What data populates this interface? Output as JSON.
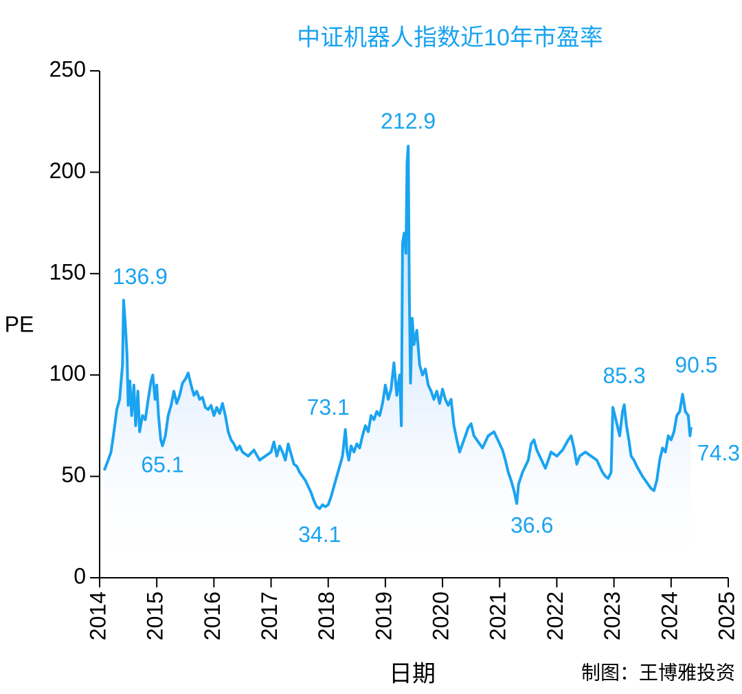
{
  "chart_data": {
    "type": "line",
    "title": "中证机器人指数近10年市盈率",
    "x_label": "日期",
    "y_label": "PE",
    "source": "制图：王博雅投资",
    "color": "#1aa3f0",
    "xlim": [
      2014,
      2025
    ],
    "xticks": [
      2014,
      2015,
      2016,
      2017,
      2018,
      2019,
      2020,
      2021,
      2022,
      2023,
      2024,
      2025
    ],
    "ylim": [
      0,
      250
    ],
    "yticks": [
      0,
      50,
      100,
      150,
      200,
      250
    ],
    "x": [
      2014.08,
      2014.15,
      2014.2,
      2014.25,
      2014.3,
      2014.35,
      2014.4,
      2014.42,
      2014.45,
      2014.48,
      2014.5,
      2014.53,
      2014.56,
      2014.6,
      2014.63,
      2014.67,
      2014.7,
      2014.75,
      2014.8,
      2014.85,
      2014.9,
      2014.93,
      2014.97,
      2015.0,
      2015.03,
      2015.07,
      2015.1,
      2015.15,
      2015.2,
      2015.25,
      2015.3,
      2015.35,
      2015.4,
      2015.45,
      2015.5,
      2015.55,
      2015.6,
      2015.65,
      2015.7,
      2015.75,
      2015.8,
      2015.85,
      2015.9,
      2015.95,
      2016.0,
      2016.05,
      2016.1,
      2016.15,
      2016.2,
      2016.25,
      2016.3,
      2016.35,
      2016.4,
      2016.45,
      2016.5,
      2016.6,
      2016.7,
      2016.8,
      2016.9,
      2017.0,
      2017.05,
      2017.1,
      2017.15,
      2017.2,
      2017.25,
      2017.3,
      2017.35,
      2017.4,
      2017.45,
      2017.5,
      2017.6,
      2017.7,
      2017.75,
      2017.8,
      2017.85,
      2017.9,
      2017.95,
      2018.0,
      2018.05,
      2018.1,
      2018.15,
      2018.2,
      2018.25,
      2018.3,
      2018.33,
      2018.36,
      2018.4,
      2018.45,
      2018.5,
      2018.55,
      2018.6,
      2018.65,
      2018.7,
      2018.75,
      2018.8,
      2018.85,
      2018.9,
      2018.95,
      2019.0,
      2019.05,
      2019.1,
      2019.15,
      2019.2,
      2019.25,
      2019.28,
      2019.3,
      2019.33,
      2019.36,
      2019.38,
      2019.4,
      2019.42,
      2019.44,
      2019.47,
      2019.5,
      2019.55,
      2019.6,
      2019.65,
      2019.7,
      2019.75,
      2019.8,
      2019.85,
      2019.9,
      2019.95,
      2020.0,
      2020.05,
      2020.1,
      2020.15,
      2020.2,
      2020.25,
      2020.3,
      2020.35,
      2020.4,
      2020.45,
      2020.5,
      2020.55,
      2020.6,
      2020.7,
      2020.8,
      2020.9,
      2021.0,
      2021.05,
      2021.1,
      2021.15,
      2021.2,
      2021.25,
      2021.3,
      2021.33,
      2021.4,
      2021.5,
      2021.55,
      2021.6,
      2021.65,
      2021.7,
      2021.8,
      2021.85,
      2021.9,
      2022.0,
      2022.1,
      2022.2,
      2022.25,
      2022.3,
      2022.35,
      2022.4,
      2022.5,
      2022.6,
      2022.7,
      2022.75,
      2022.8,
      2022.85,
      2022.9,
      2022.95,
      2022.98,
      2023.0,
      2023.05,
      2023.1,
      2023.15,
      2023.18,
      2023.22,
      2023.26,
      2023.3,
      2023.35,
      2023.4,
      2023.5,
      2023.6,
      2023.65,
      2023.7,
      2023.75,
      2023.8,
      2023.85,
      2023.9,
      2023.95,
      2024.0,
      2024.05,
      2024.1,
      2024.15,
      2024.2,
      2024.25,
      2024.3,
      2024.33,
      2024.35
    ],
    "series": [
      {
        "values": [
          53,
          58,
          62,
          72,
          83,
          88,
          105,
          136.9,
          125,
          110,
          85,
          97,
          80,
          95,
          75,
          92,
          72,
          80,
          78,
          88,
          97,
          100,
          88,
          95,
          80,
          68,
          65.1,
          70,
          80,
          85,
          92,
          86,
          90,
          96,
          98,
          101,
          95,
          90,
          92,
          88,
          89,
          84,
          83,
          85,
          80,
          84,
          81,
          86,
          80,
          72,
          68,
          66,
          63,
          65,
          62,
          60,
          63,
          58,
          60,
          62,
          67,
          60,
          65,
          62,
          58,
          66,
          61,
          56,
          55,
          52,
          48,
          42,
          38,
          35,
          34.1,
          36,
          35,
          36,
          40,
          45,
          50,
          55,
          60,
          73.1,
          62,
          58,
          65,
          62,
          66,
          64,
          70,
          75,
          72,
          80,
          78,
          82,
          80,
          86,
          95,
          88,
          93,
          106,
          90,
          100,
          75,
          165,
          170,
          160,
          205,
          212.9,
          140,
          96,
          128,
          115,
          122,
          105,
          100,
          103,
          95,
          92,
          88,
          92,
          86,
          93,
          88,
          85,
          88,
          75,
          68,
          62,
          66,
          70,
          74,
          76,
          70,
          68,
          64,
          70,
          72,
          66,
          63,
          58,
          52,
          48,
          43,
          36.6,
          46,
          52,
          58,
          66,
          68,
          63,
          60,
          54,
          58,
          62,
          60,
          63,
          68,
          70,
          64,
          56,
          60,
          62,
          60,
          58,
          55,
          52,
          50,
          49,
          52,
          84,
          82,
          76,
          70,
          82,
          85.3,
          75,
          68,
          60,
          58,
          55,
          50,
          46,
          44,
          43,
          48,
          58,
          64,
          62,
          70,
          68,
          72,
          80,
          82,
          90.5,
          82,
          80,
          70,
          74.3
        ]
      }
    ],
    "annotations": [
      {
        "label": "136.9",
        "x": 2014.42,
        "y": 136.9
      },
      {
        "label": "65.1",
        "x": 2015.1,
        "y": 65.1
      },
      {
        "label": "34.1",
        "x": 2017.85,
        "y": 34.1
      },
      {
        "label": "73.1",
        "x": 2018.3,
        "y": 73.1
      },
      {
        "label": "212.9",
        "x": 2019.4,
        "y": 212.9
      },
      {
        "label": "36.6",
        "x": 2021.3,
        "y": 36.6
      },
      {
        "label": "85.3",
        "x": 2023.18,
        "y": 85.3
      },
      {
        "label": "90.5",
        "x": 2024.2,
        "y": 90.5
      },
      {
        "label": "74.3",
        "x": 2024.35,
        "y": 74.3
      }
    ]
  }
}
